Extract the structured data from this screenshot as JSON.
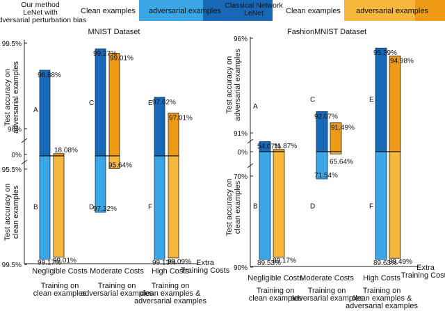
{
  "legend_left": {
    "method_label": "Our method\nLeNet with\nadversarial perturbation bias",
    "clean_label": "Clean examples",
    "adv_label": "adversarial examples"
  },
  "legend_right": {
    "method_label": "Classical Network\nLeNet",
    "clean_label": "Clean examples",
    "adv_label": "adversarial examples"
  },
  "colors": {
    "ours_clean": "#3aa6e6",
    "ours_adv": "#1769b8",
    "classic_clean": "#f7b73c",
    "classic_adv": "#ef9a15",
    "label_blue": "#2f8fd8",
    "label_orange": "#f0a020"
  },
  "chart_data": [
    {
      "type": "bar",
      "title": "MNIST Dataset",
      "ylabel_top": "Test accuracy on adversarial examples",
      "ylabel_bottom": "Test accuracy on clean examples",
      "top_axis_ticks": [
        "99.5%",
        "96%",
        "0%"
      ],
      "bottom_axis_ticks": [
        "95.5%",
        "99.5%"
      ],
      "categories": [
        "Negligible Costs",
        "Moderate Costs",
        "High Costs"
      ],
      "training_labels": [
        "Training on\nclean examples",
        "Training on\nadversarial examples",
        "Training on\nclean examples &\nadversarial examples"
      ],
      "extra_label": "Extra\nTraining Costs",
      "point_labels": [
        "A",
        "B",
        "C",
        "D",
        "E",
        "F"
      ],
      "series": [
        {
          "name": "Our method adversarial",
          "values": [
            98.88,
            99.27,
            97.62
          ],
          "labels": [
            "98.88%",
            "99.27%",
            "97.62%"
          ],
          "plot_height": [
            0.76,
            0.95,
            0.52
          ]
        },
        {
          "name": "Classical adversarial",
          "values": [
            18.08,
            99.01,
            97.01
          ],
          "labels": [
            "18.08%",
            "99.01%",
            "97.01%"
          ],
          "plot_height": [
            0.02,
            0.91,
            0.38
          ]
        },
        {
          "name": "Our method clean",
          "values": [
            99.17,
            97.32,
            99.13
          ],
          "labels": [
            "99.17%",
            "97.32%",
            "99.13%"
          ],
          "plot_height": [
            0.97,
            0.53,
            0.97
          ]
        },
        {
          "name": "Classical clean",
          "values": [
            99.01,
            95.64,
            99.09
          ],
          "labels": [
            "99.01%",
            "95.64%",
            "99.09%"
          ],
          "plot_height": [
            0.95,
            0.12,
            0.96
          ]
        }
      ]
    },
    {
      "type": "bar",
      "title": "FashionMNIST Dataset",
      "ylabel_top": "Test accuracy on adversarial examples",
      "ylabel_bottom": "Test accuracy on clean examples",
      "top_axis_ticks": [
        "96%",
        "91%",
        "0%"
      ],
      "bottom_axis_ticks": [
        "70%",
        "90%"
      ],
      "categories": [
        "Negligible Costs",
        "Moderate Costs",
        "High Costs"
      ],
      "training_labels": [
        "Training on\nclean examples",
        "Training on\nadversarial examples",
        "Training on\nclean examples &\nadversarial examples"
      ],
      "extra_label": "Extra\nTraining Costs",
      "point_labels": [
        "A",
        "B",
        "C",
        "D",
        "E",
        "F"
      ],
      "series": [
        {
          "name": "Our method adversarial",
          "values": [
            54.07,
            92.07,
            95.39
          ],
          "labels": [
            "54.07%",
            "92.07%",
            "95.39%"
          ],
          "plot_height": [
            0.09,
            0.36,
            0.93
          ]
        },
        {
          "name": "Classical adversarial",
          "values": [
            11.87,
            91.49,
            94.98
          ],
          "labels": [
            "11.87%",
            "91.49%",
            "94.98%"
          ],
          "plot_height": [
            0.02,
            0.26,
            0.86
          ]
        },
        {
          "name": "Our method clean",
          "values": [
            89.53,
            71.54,
            89.63
          ],
          "labels": [
            "89.53%",
            "71.54%",
            "89.63%"
          ],
          "plot_height": [
            0.95,
            0.24,
            0.95
          ]
        },
        {
          "name": "Classical clean",
          "values": [
            89.17,
            65.64,
            89.49
          ],
          "labels": [
            "89.17%",
            "65.64%",
            "89.49%"
          ],
          "plot_height": [
            0.93,
            0.02,
            0.94
          ]
        }
      ]
    }
  ]
}
